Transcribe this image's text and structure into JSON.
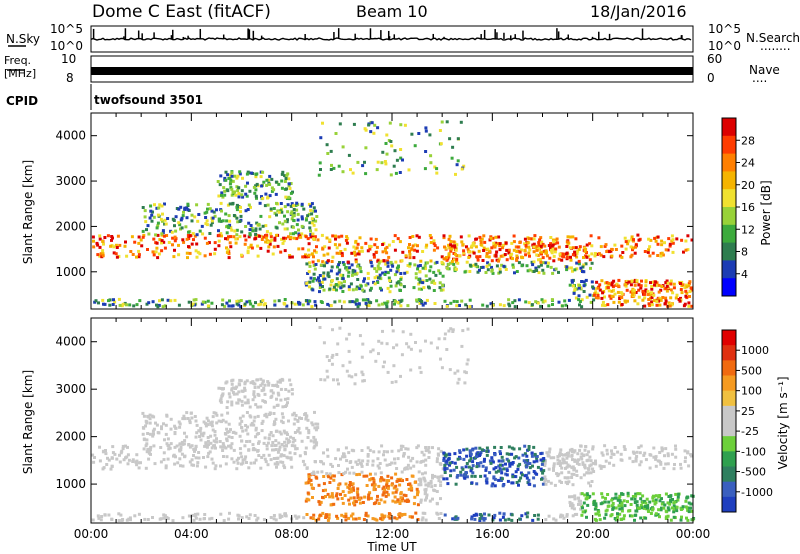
{
  "header": {
    "station": "Dome C East (fitACF)",
    "beam": "Beam 10",
    "date": "18/Jan/2016"
  },
  "left_labels": {
    "nsky": "N.Sky",
    "freq_line1": "Freq.",
    "freq_line2": "[MHz]",
    "cpid": "CPID"
  },
  "right_labels": {
    "nsearch": "N.Search",
    "nsearch_dots": "........",
    "nave": "Nave",
    "nave_dots": "...."
  },
  "cpid_text": "twofsound 3501",
  "chart_data": [
    {
      "type": "line",
      "name": "noise-panel",
      "left_ticks": [
        "10^5",
        "10^0"
      ],
      "right_ticks": [
        "10^5",
        "10^0"
      ],
      "left_series_label": "N.Sky",
      "right_series_label": "N.Search"
    },
    {
      "type": "line",
      "name": "freq-panel",
      "left_ticks": [
        "10",
        "8"
      ],
      "right_ticks": [
        "60",
        "0"
      ],
      "left_series_label": "Freq. [MHz]",
      "right_series_label": "Nave"
    },
    {
      "type": "heatmap",
      "name": "power-panel",
      "xlabel": "Time UT",
      "ylabel": "Slant Range [km]",
      "xlim": [
        0,
        24
      ],
      "ylim": [
        180,
        4500
      ],
      "x_ticks": [
        "00:00",
        "04:00",
        "08:00",
        "12:00",
        "16:00",
        "20:00",
        "00:00"
      ],
      "y_ticks": [
        1000,
        2000,
        3000,
        4000
      ],
      "colorbar": {
        "label": "Power [dB]",
        "ticks": [
          28,
          24,
          20,
          16,
          12,
          8,
          4
        ],
        "colors": [
          "#0000ff",
          "#1c3cb4",
          "#2e7d4f",
          "#3caa3c",
          "#98d238",
          "#f0e130",
          "#f5b400",
          "#ff7f00",
          "#ff3c00",
          "#dc0000"
        ]
      }
    },
    {
      "type": "heatmap",
      "name": "velocity-panel",
      "xlabel": "Time UT",
      "ylabel": "Slant Range [km]",
      "xlim": [
        0,
        24
      ],
      "ylim": [
        180,
        4500
      ],
      "x_ticks": [
        "00:00",
        "04:00",
        "08:00",
        "12:00",
        "16:00",
        "20:00",
        "00:00"
      ],
      "y_ticks": [
        1000,
        2000,
        3000,
        4000
      ],
      "colorbar": {
        "label": "Velocity [m s⁻¹]",
        "ticks": [
          1000,
          500,
          100,
          25,
          -25,
          -100,
          -500,
          -1000
        ],
        "colors": [
          "#1f3fbf",
          "#3a5fbf",
          "#2f7f5f",
          "#2fa04f",
          "#6ccf3a",
          "#c8c8c8",
          "#c8c8c8",
          "#f0c040",
          "#f59a20",
          "#f06a10",
          "#e03010",
          "#e00000"
        ]
      }
    }
  ]
}
